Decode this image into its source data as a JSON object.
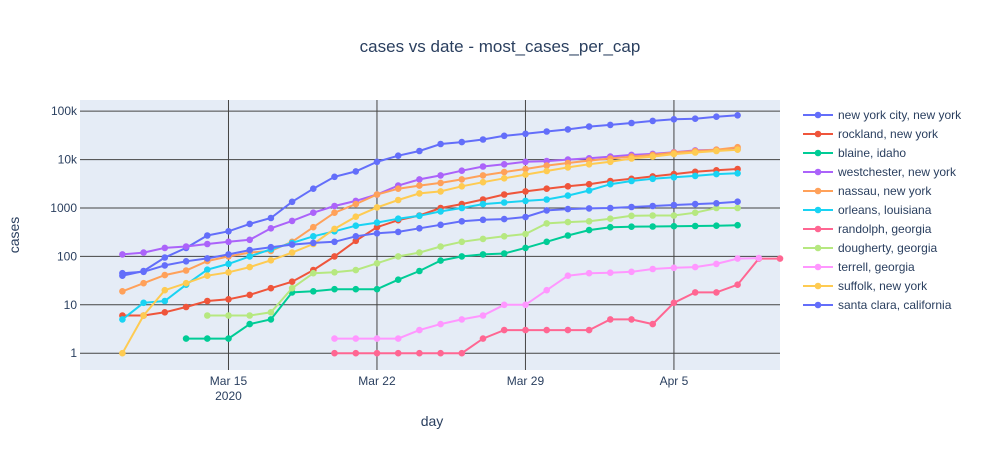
{
  "chart_data": {
    "type": "line",
    "title": "cases vs date - most_cases_per_cap",
    "xlabel": "day",
    "ylabel": "cases",
    "y_scale": "log",
    "x_start": "2020-03-09",
    "xlim": [
      "2020-03-08",
      "2020-04-10"
    ],
    "ylim": [
      0.45,
      170000
    ],
    "x_ticks": [
      {
        "date": "2020-03-15",
        "label": "Mar 15",
        "sublabel": "2020"
      },
      {
        "date": "2020-03-22",
        "label": "Mar 22",
        "sublabel": ""
      },
      {
        "date": "2020-03-29",
        "label": "Mar 29",
        "sublabel": ""
      },
      {
        "date": "2020-04-05",
        "label": "Apr 5",
        "sublabel": ""
      }
    ],
    "y_ticks": [
      {
        "value": 1,
        "label": "1"
      },
      {
        "value": 10,
        "label": "10"
      },
      {
        "value": 100,
        "label": "100"
      },
      {
        "value": 1000,
        "label": "1000"
      },
      {
        "value": 10000,
        "label": "10k"
      },
      {
        "value": 100000,
        "label": "100k"
      }
    ],
    "grid": "on",
    "legend": "right",
    "series": [
      {
        "name": "new york city, new york",
        "color": "#636efa",
        "start": "2020-03-10",
        "values": [
          40,
          50,
          95,
          150,
          270,
          330,
          470,
          620,
          1340,
          2500,
          4400,
          5700,
          9000,
          12000,
          15000,
          21000,
          23000,
          26000,
          31000,
          34000,
          38000,
          42000,
          48000,
          52000,
          57000,
          63000,
          68000,
          70000,
          77000,
          82000
        ]
      },
      {
        "name": "rockland, new york",
        "color": "#ef553b",
        "start": "2020-03-10",
        "values": [
          6,
          6,
          7,
          9,
          12,
          13,
          16,
          22,
          30,
          52,
          100,
          210,
          400,
          560,
          700,
          1000,
          1200,
          1500,
          1900,
          2200,
          2500,
          2800,
          3100,
          3600,
          4000,
          4500,
          5000,
          5600,
          6000,
          6400
        ]
      },
      {
        "name": "blaine, idaho",
        "color": "#00cc96",
        "start": "2020-03-13",
        "values": [
          2,
          2,
          2,
          4,
          5,
          18,
          19,
          21,
          21,
          21,
          33,
          50,
          82,
          100,
          110,
          115,
          150,
          200,
          270,
          350,
          400,
          410,
          415,
          420,
          425,
          430,
          440
        ]
      },
      {
        "name": "westchester, new york",
        "color": "#ab63fa",
        "start": "2020-03-10",
        "values": [
          110,
          120,
          150,
          160,
          180,
          200,
          220,
          380,
          540,
          800,
          1100,
          1400,
          1900,
          2900,
          3900,
          4700,
          5900,
          7200,
          8000,
          9000,
          9300,
          10000,
          10600,
          11500,
          12500,
          13100,
          14200,
          15500,
          16000,
          16500
        ]
      },
      {
        "name": "nassau, new york",
        "color": "#ffa15a",
        "start": "2020-03-10",
        "values": [
          19,
          28,
          41,
          51,
          80,
          100,
          120,
          130,
          200,
          400,
          800,
          1200,
          1900,
          2500,
          2900,
          3300,
          3900,
          4700,
          5500,
          6400,
          7500,
          8500,
          9500,
          10500,
          11500,
          12500,
          14000,
          15000,
          16000,
          18000
        ]
      },
      {
        "name": "orleans, louisiana",
        "color": "#19d3f3",
        "start": "2020-03-10",
        "values": [
          5,
          11,
          12,
          26,
          53,
          70,
          100,
          140,
          190,
          260,
          330,
          430,
          500,
          600,
          690,
          850,
          1000,
          1200,
          1300,
          1400,
          1500,
          1800,
          2300,
          3100,
          3600,
          4000,
          4300,
          4600,
          5000,
          5200
        ]
      },
      {
        "name": "randolph, georgia",
        "color": "#ff6692",
        "start": "2020-03-20",
        "values": [
          1,
          1,
          1,
          1,
          1,
          1,
          1,
          2,
          3,
          3,
          3,
          3,
          3,
          5,
          5,
          4,
          11,
          18,
          18,
          26,
          90,
          90
        ]
      },
      {
        "name": "dougherty, georgia",
        "color": "#b6e880",
        "start": "2020-03-14",
        "values": [
          6,
          6,
          6,
          7,
          22,
          45,
          47,
          52,
          72,
          100,
          120,
          160,
          200,
          230,
          260,
          290,
          480,
          510,
          530,
          600,
          690,
          700,
          700,
          800,
          1000,
          1000
        ]
      },
      {
        "name": "terrell, georgia",
        "color": "#ff97ff",
        "start": "2020-03-20",
        "values": [
          2,
          2,
          2,
          2,
          3,
          4,
          5,
          6,
          10,
          10,
          20,
          40,
          45,
          46,
          48,
          55,
          58,
          60,
          70,
          90,
          92
        ]
      },
      {
        "name": "suffolk, new york",
        "color": "#fecb52",
        "start": "2020-03-10",
        "values": [
          1,
          6,
          20,
          28,
          40,
          47,
          60,
          83,
          120,
          180,
          370,
          660,
          1030,
          1460,
          2000,
          2200,
          2800,
          3400,
          4100,
          4900,
          5800,
          6900,
          8000,
          9000,
          10500,
          11500,
          13000,
          14000,
          15000,
          16000
        ]
      },
      {
        "name": "santa clara, california",
        "color": "#636efa",
        "start": "2020-03-10",
        "values": [
          45,
          48,
          65,
          79,
          91,
          110,
          135,
          155,
          175,
          190,
          200,
          260,
          300,
          320,
          380,
          450,
          530,
          570,
          590,
          650,
          890,
          950,
          980,
          1000,
          1050,
          1100,
          1150,
          1200,
          1250,
          1350
        ]
      }
    ]
  }
}
